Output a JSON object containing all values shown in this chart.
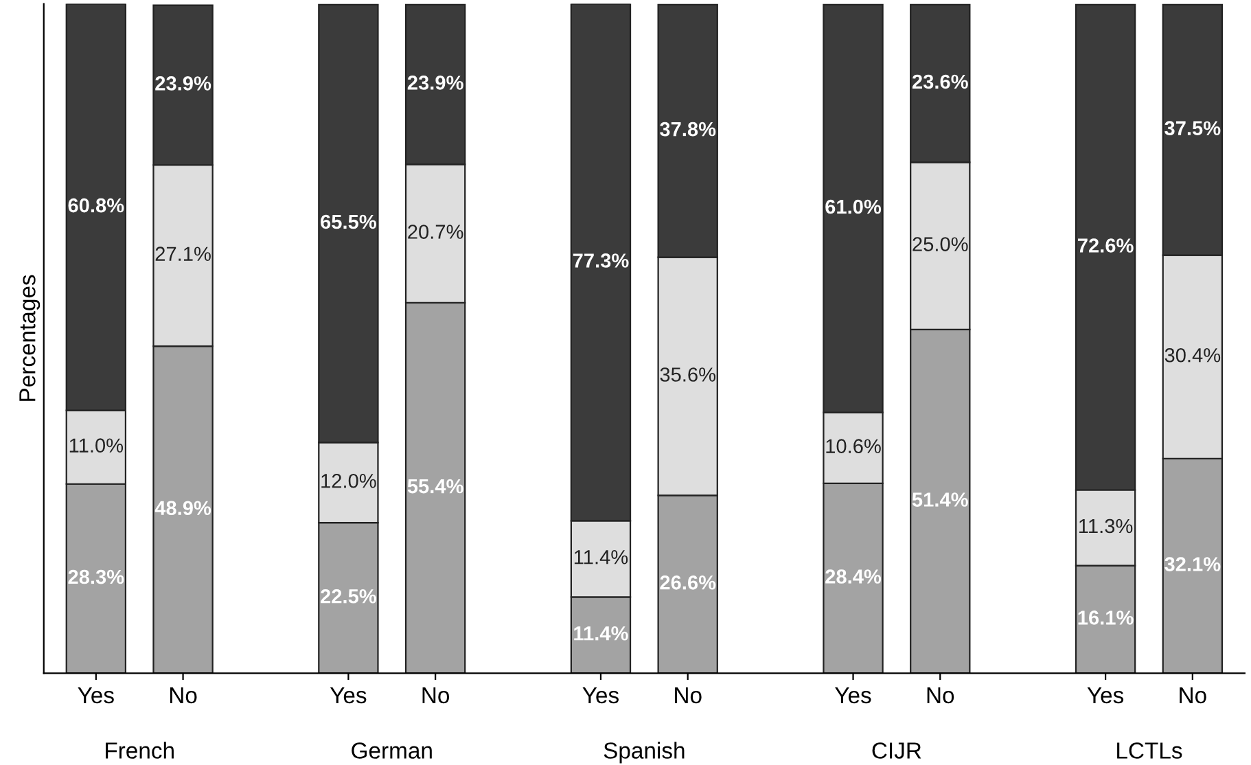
{
  "chart_data": {
    "type": "bar",
    "stacked": true,
    "ylabel": "Percentages",
    "categories": [
      "Yes",
      "No",
      "Yes",
      "No",
      "Yes",
      "No",
      "Yes",
      "No",
      "Yes",
      "No"
    ],
    "series": [
      {
        "color": "#a3a3a3",
        "values": [
          28.3,
          48.9,
          22.5,
          55.4,
          11.4,
          26.6,
          28.4,
          51.4,
          16.1,
          32.1
        ],
        "value_labels": [
          "28.3%",
          "48.9%",
          "22.5%",
          "55.4%",
          "11.4%",
          "26.6%",
          "28.4%",
          "51.4%",
          "16.1%",
          "32.1%"
        ]
      },
      {
        "color": "#dedede",
        "values": [
          11.0,
          27.1,
          12.0,
          20.7,
          11.4,
          35.6,
          10.6,
          25.0,
          11.3,
          30.4
        ],
        "value_labels": [
          "11.0%",
          "27.1%",
          "12.0%",
          "20.7%",
          "11.4%",
          "35.6%",
          "10.6%",
          "25.0%",
          "11.3%",
          "30.4%"
        ]
      },
      {
        "color": "#3b3b3b",
        "values": [
          60.8,
          23.9,
          65.5,
          23.9,
          77.3,
          37.8,
          61.0,
          23.6,
          72.6,
          37.5
        ],
        "value_labels": [
          "60.8%",
          "23.9%",
          "65.5%",
          "23.9%",
          "77.3%",
          "37.8%",
          "61.0%",
          "23.6%",
          "72.6%",
          "37.5%"
        ]
      }
    ],
    "annotations": [
      "French",
      "German",
      "Spanish",
      "CIJR",
      "LCTLs"
    ],
    "ylim": [
      0,
      100.1
    ],
    "tick_labels": "x",
    "grid": false,
    "legend": false
  }
}
